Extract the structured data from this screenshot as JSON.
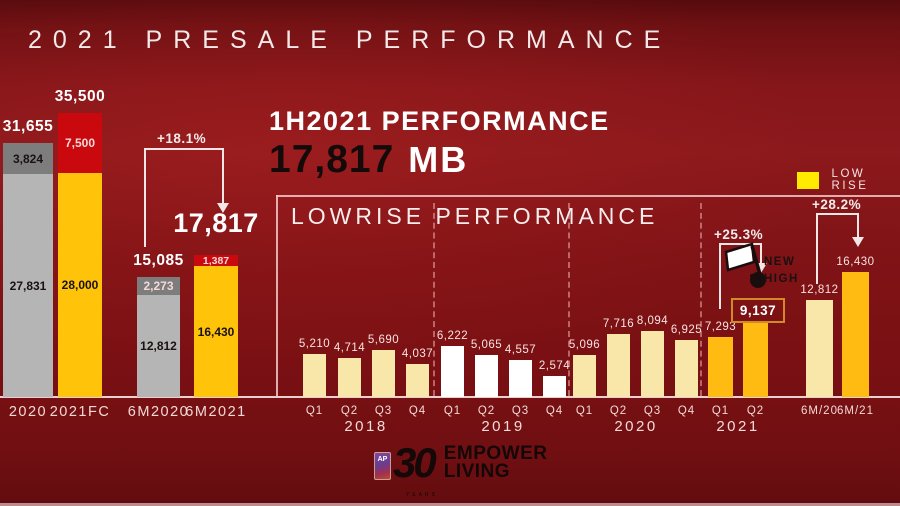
{
  "slide_title": "2021 PRESALE PERFORMANCE",
  "headline": {
    "title": "1H2021 PERFORMANCE",
    "value": "17,817",
    "unit": "MB"
  },
  "legend": {
    "label": "LOW RISE",
    "color": "#FFEB00"
  },
  "new_high": {
    "word1": "NEW",
    "word2": "HIGH"
  },
  "logo": {
    "badge": "AP",
    "number": "30",
    "years": "YEARS",
    "line1": "EMPOWER",
    "line2": "LIVING"
  },
  "colors": {
    "background": "#7E1215",
    "bar_gray": "#B5B5B5",
    "bar_darkgray": "#7D7D7D",
    "bar_yellow": "#FFC40A",
    "bar_red": "#C9090D",
    "bar_cream": "#F8E7A8",
    "bar_white": "#FFFFFF",
    "bar_gold": "#FFBB12",
    "legend_yellow": "#FFEB00"
  },
  "chart_data": [
    {
      "type": "bar",
      "name": "presale-totals",
      "stacked": true,
      "categories": [
        "2020",
        "2021FC",
        "6M2020",
        "6M2021"
      ],
      "series": [
        {
          "name": "base",
          "values": [
            27831,
            28000,
            12812,
            16430
          ],
          "labels": [
            "27,831",
            "28,000",
            "12,812",
            "16,430"
          ],
          "colors": [
            "gray",
            "yellow",
            "gray",
            "yellow"
          ],
          "label_tone": [
            "dark",
            "dark",
            "dark",
            "dark"
          ]
        },
        {
          "name": "top",
          "values": [
            3824,
            7500,
            2273,
            1387
          ],
          "labels": [
            "3,824",
            "7,500",
            "2,273",
            "1,387"
          ],
          "colors": [
            "darkgray",
            "red",
            "darkgray",
            "red"
          ],
          "label_tone": [
            "dark",
            "light",
            "light",
            "light"
          ]
        }
      ],
      "totals": [
        31655,
        35500,
        15085,
        17817
      ],
      "total_labels": [
        "31,655",
        "35,500",
        "15,085",
        "17,817"
      ],
      "annotation": {
        "text": "+18.1%",
        "from": "6M2020",
        "to": "6M2021"
      }
    },
    {
      "type": "bar",
      "name": "lowrise-quarterly",
      "title": "LOWRISE PERFORMANCE",
      "groups": [
        {
          "year": "2018",
          "categories": [
            "Q1",
            "Q2",
            "Q3",
            "Q4"
          ],
          "values": [
            5210,
            4714,
            5690,
            4037
          ],
          "value_labels": [
            "5,210",
            "4,714",
            "5,690",
            "4,037"
          ],
          "style": "cream"
        },
        {
          "year": "2019",
          "categories": [
            "Q1",
            "Q2",
            "Q3",
            "Q4"
          ],
          "values": [
            6222,
            5065,
            4557,
            2574
          ],
          "value_labels": [
            "6,222",
            "5,065",
            "4,557",
            "2,574"
          ],
          "style": "white"
        },
        {
          "year": "2020",
          "categories": [
            "Q1",
            "Q2",
            "Q3",
            "Q4"
          ],
          "values": [
            5096,
            7716,
            8094,
            6925
          ],
          "value_labels": [
            "5,096",
            "7,716",
            "8,094",
            "6,925"
          ],
          "style": "cream"
        },
        {
          "year": "2021",
          "categories": [
            "Q1",
            "Q2"
          ],
          "values": [
            7293,
            9137
          ],
          "value_labels": [
            "7,293",
            "9,137"
          ],
          "style": "gold",
          "highlight_index": 1
        }
      ],
      "halfyear": {
        "categories": [
          "6M/20",
          "6M/21"
        ],
        "values": [
          12812,
          16430
        ],
        "value_labels": [
          "12,812",
          "16,430"
        ],
        "styles": [
          "cream",
          "gold"
        ]
      },
      "highlight_box": "9,137",
      "annotations": [
        {
          "text": "+25.3%",
          "from": "2021 Q1",
          "to": "2021 Q2"
        },
        {
          "text": "+28.2%",
          "from": "6M/20",
          "to": "6M/21"
        },
        {
          "text": "NEW HIGH",
          "target": "2021 Q2"
        }
      ],
      "legend": [
        {
          "label": "LOW RISE",
          "color": "#FFEB00"
        }
      ]
    }
  ]
}
